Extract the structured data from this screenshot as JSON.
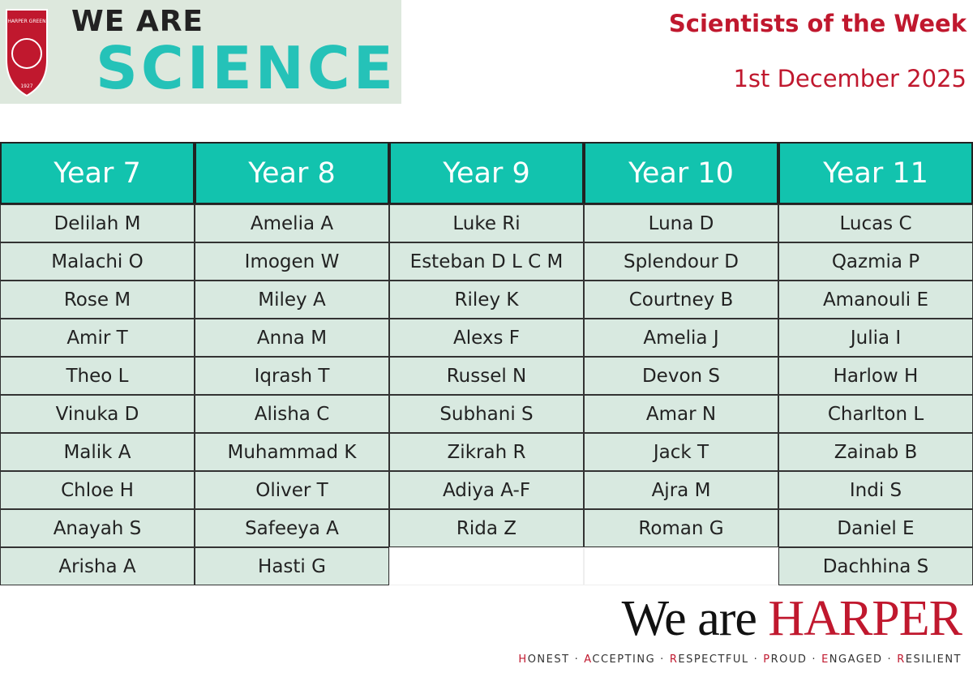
{
  "header": {
    "logo": {
      "crest_name": "HARPER GREEN",
      "crest_year": "1927",
      "line1": "WE ARE",
      "line2": "SCIENCE"
    },
    "title": "Scientists of the Week",
    "date": "1st December 2025"
  },
  "table": {
    "columns": [
      {
        "header": "Year 7",
        "names": [
          "Delilah M",
          "Malachi O",
          "Rose M",
          "Amir T",
          "Theo L",
          "Vinuka D",
          "Malik A",
          "Chloe H",
          "Anayah S",
          "Arisha A"
        ]
      },
      {
        "header": "Year 8",
        "names": [
          "Amelia A",
          "Imogen W",
          "Miley A",
          "Anna M",
          "Iqrash T",
          "Alisha C",
          "Muhammad K",
          "Oliver T",
          "Safeeya A",
          "Hasti G"
        ]
      },
      {
        "header": "Year 9",
        "names": [
          "Luke Ri",
          "Esteban D L C M",
          "Riley K",
          "Alexs F",
          "Russel N",
          "Subhani S",
          "Zikrah R",
          "Adiya A-F",
          "Rida Z"
        ]
      },
      {
        "header": "Year 10",
        "names": [
          "Luna D",
          "Splendour D",
          "Courtney B",
          "Amelia J",
          "Devon S",
          "Amar N",
          "Jack T",
          "Ajra M",
          "Roman G"
        ]
      },
      {
        "header": "Year 11",
        "names": [
          "Lucas C",
          "Qazmia P",
          "Amanouli E",
          "Julia I",
          "Harlow H",
          "Charlton L",
          "Zainab B",
          "Indi S",
          "Daniel E",
          "Dachhina S"
        ]
      }
    ]
  },
  "footer": {
    "brand_prefix": "We are",
    "brand_name": "HARPER",
    "values": [
      "HONEST",
      "ACCEPTING",
      "RESPECTFUL",
      "PROUD",
      "ENGAGED",
      "RESILIENT"
    ]
  }
}
